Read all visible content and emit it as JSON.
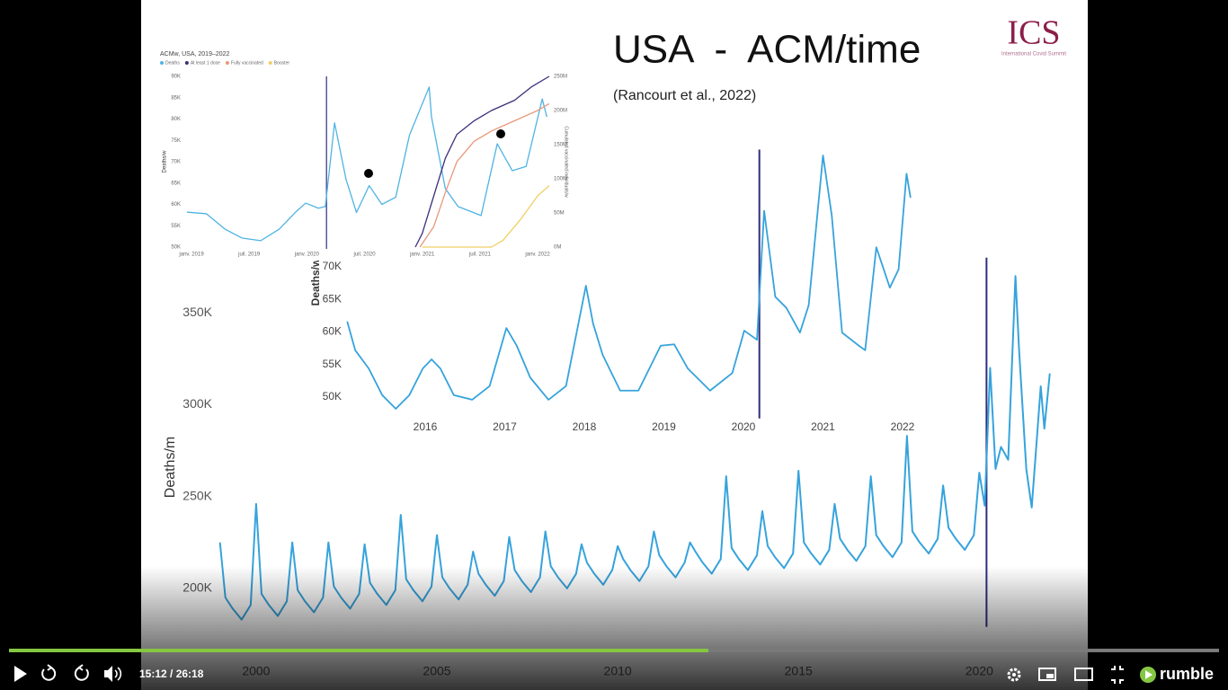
{
  "player": {
    "time": "15:12 / 26:18",
    "brand": "rumble"
  },
  "slide": {
    "title": "USA  -  ACM/time",
    "citation": "(Rancourt et al., 2022)",
    "logo": "ICS",
    "logo_subtitle": "International Covid Summit"
  },
  "chart_data": [
    {
      "type": "line",
      "y_label": "Deaths/m",
      "xlim": [
        1996.8,
        2023
      ],
      "ylim": [
        180000,
        380000
      ],
      "xticks": [
        2000,
        2005,
        2010,
        2015,
        2020
      ],
      "yticks": [
        {
          "value": 200000,
          "label": "200K"
        },
        {
          "value": 250000,
          "label": "250K"
        },
        {
          "value": 300000,
          "label": "300K"
        },
        {
          "value": 350000,
          "label": "350K"
        }
      ],
      "vline": 2020.2,
      "vline_color": "#2e2e7e",
      "series": [
        {
          "color": "#36a3dc",
          "x": [
            1999,
            1999.15,
            1999.35,
            1999.6,
            1999.85,
            2000,
            2000.15,
            2000.35,
            2000.6,
            2000.85,
            2001,
            2001.15,
            2001.35,
            2001.6,
            2001.85,
            2002,
            2002.15,
            2002.35,
            2002.6,
            2002.85,
            2003,
            2003.15,
            2003.35,
            2003.6,
            2003.85,
            2004,
            2004.15,
            2004.35,
            2004.6,
            2004.85,
            2005,
            2005.15,
            2005.35,
            2005.6,
            2005.85,
            2006,
            2006.15,
            2006.35,
            2006.6,
            2006.85,
            2007,
            2007.15,
            2007.35,
            2007.6,
            2007.85,
            2008,
            2008.15,
            2008.35,
            2008.6,
            2008.85,
            2009,
            2009.15,
            2009.35,
            2009.6,
            2009.85,
            2010,
            2010.15,
            2010.35,
            2010.6,
            2010.85,
            2011,
            2011.15,
            2011.35,
            2011.6,
            2011.85,
            2012,
            2012.15,
            2012.35,
            2012.6,
            2012.85,
            2013,
            2013.15,
            2013.35,
            2013.6,
            2013.85,
            2014,
            2014.15,
            2014.35,
            2014.6,
            2014.85,
            2015,
            2015.15,
            2015.35,
            2015.6,
            2015.85,
            2016,
            2016.15,
            2016.35,
            2016.6,
            2016.85,
            2017,
            2017.15,
            2017.35,
            2017.6,
            2017.85,
            2018,
            2018.15,
            2018.35,
            2018.6,
            2018.85,
            2019,
            2019.15,
            2019.35,
            2019.6,
            2019.85,
            2020,
            2020.15,
            2020.3,
            2020.45,
            2020.6,
            2020.8,
            2021,
            2021.1,
            2021.3,
            2021.45,
            2021.7,
            2021.8,
            2021.95
          ],
          "values": [
            225000,
            195000,
            189000,
            183000,
            191000,
            246000,
            197000,
            191000,
            185000,
            193000,
            225000,
            199000,
            193000,
            187000,
            195000,
            225000,
            201000,
            195000,
            189000,
            197000,
            224000,
            203000,
            197000,
            191000,
            199000,
            240000,
            205000,
            199000,
            193000,
            201000,
            229000,
            206000,
            200000,
            194000,
            202000,
            220000,
            208000,
            202000,
            196000,
            204000,
            228000,
            210000,
            204000,
            198000,
            206000,
            231000,
            212000,
            206000,
            200000,
            208000,
            224000,
            214000,
            208000,
            202000,
            210000,
            223000,
            216000,
            210000,
            204000,
            212000,
            231000,
            218000,
            212000,
            206000,
            214000,
            225000,
            220000,
            214000,
            208000,
            216000,
            261000,
            222000,
            216000,
            210000,
            218000,
            242000,
            223000,
            217000,
            211000,
            219000,
            264000,
            225000,
            219000,
            213000,
            221000,
            246000,
            227000,
            221000,
            215000,
            223000,
            261000,
            229000,
            223000,
            217000,
            225000,
            283000,
            231000,
            225000,
            219000,
            227000,
            256000,
            233000,
            227000,
            221000,
            229000,
            263000,
            245000,
            320000,
            265000,
            277000,
            270000,
            370000,
            330000,
            265000,
            244000,
            310000,
            287000,
            317000
          ]
        }
      ]
    },
    {
      "type": "line",
      "y_label": "Deaths/w",
      "xlim": [
        2015,
        2022.2
      ],
      "ylim": [
        47000,
        88000
      ],
      "xticks": [
        2016,
        2017,
        2018,
        2019,
        2020,
        2021,
        2022
      ],
      "yticks": [
        {
          "value": 50000,
          "label": "50K"
        },
        {
          "value": 55000,
          "label": "55K"
        },
        {
          "value": 60000,
          "label": "60K"
        },
        {
          "value": 65000,
          "label": "65K"
        },
        {
          "value": 70000,
          "label": "70K"
        }
      ],
      "vline": 2020.2,
      "vline_color": "#2e2e7e",
      "series": [
        {
          "color": "#36a3dc",
          "x": [
            2015.02,
            2015.12,
            2015.29,
            2015.46,
            2015.63,
            2015.8,
            2015.97,
            2016.08,
            2016.19,
            2016.36,
            2016.59,
            2016.81,
            2017.02,
            2017.15,
            2017.32,
            2017.55,
            2017.77,
            2018.02,
            2018.11,
            2018.23,
            2018.45,
            2018.68,
            2018.96,
            2019.13,
            2019.3,
            2019.58,
            2019.86,
            2020.01,
            2020.17,
            2020.26,
            2020.4,
            2020.54,
            2020.71,
            2020.82,
            2021,
            2021.11,
            2021.24,
            2021.45,
            2021.53,
            2021.67,
            2021.84,
            2021.95,
            2022.05,
            2022.1
          ],
          "values": [
            61600,
            57200,
            54400,
            50300,
            48200,
            50300,
            54400,
            55800,
            54400,
            50300,
            49600,
            51700,
            60600,
            57900,
            53000,
            49600,
            51700,
            67100,
            61300,
            56500,
            51000,
            51000,
            57900,
            58100,
            54400,
            51000,
            53700,
            60200,
            58800,
            78600,
            65400,
            63700,
            59900,
            64100,
            87100,
            77900,
            59900,
            57900,
            57200,
            73000,
            66800,
            69600,
            84300,
            80600
          ]
        }
      ]
    },
    {
      "type": "line",
      "title": "ACMw, USA, 2019–2022",
      "y_label": "Deaths/w",
      "y2_label": "Cumulated vaccinated individuals/w",
      "xlim": [
        2018.9,
        2022.15
      ],
      "ylim": [
        50000,
        90000
      ],
      "y2lim": [
        0,
        250000000
      ],
      "xticks": [
        {
          "value": 2019,
          "label": "janv. 2019"
        },
        {
          "value": 2019.5,
          "label": "juil. 2019"
        },
        {
          "value": 2020,
          "label": "janv. 2020"
        },
        {
          "value": 2020.5,
          "label": "juil. 2020"
        },
        {
          "value": 2021,
          "label": "janv. 2021"
        },
        {
          "value": 2021.5,
          "label": "juil. 2021"
        },
        {
          "value": 2022,
          "label": "janv. 2022"
        }
      ],
      "yticks": [
        {
          "value": 50000,
          "label": "50K"
        },
        {
          "value": 55000,
          "label": "55K"
        },
        {
          "value": 60000,
          "label": "60K"
        },
        {
          "value": 65000,
          "label": "65K"
        },
        {
          "value": 70000,
          "label": "70K"
        },
        {
          "value": 75000,
          "label": "75K"
        },
        {
          "value": 80000,
          "label": "80K"
        },
        {
          "value": 85000,
          "label": "85K"
        },
        {
          "value": 90000,
          "label": "90K"
        }
      ],
      "y2ticks": [
        {
          "value": 0,
          "label": "0M"
        },
        {
          "value": 50000000,
          "label": "50M"
        },
        {
          "value": 100000000,
          "label": "100M"
        },
        {
          "value": 150000000,
          "label": "150M"
        },
        {
          "value": 200000000,
          "label": "200M"
        },
        {
          "value": 250000000,
          "label": "250M"
        }
      ],
      "vline": 2020.17,
      "vline_color": "#2e2e7e",
      "series": [
        {
          "name": "Deaths",
          "color": "#4fb3e3",
          "x": [
            2018.96,
            2019.13,
            2019.29,
            2019.44,
            2019.6,
            2019.76,
            2019.91,
            2019.99,
            2020.1,
            2020.16,
            2020.24,
            2020.34,
            2020.43,
            2020.54,
            2020.65,
            2020.77,
            2020.89,
            2021.06,
            2021.08,
            2021.2,
            2021.31,
            2021.51,
            2021.65,
            2021.78,
            2021.9,
            2022.04,
            2022.08
          ],
          "values": [
            58200,
            57800,
            54200,
            52100,
            51500,
            54200,
            58400,
            60300,
            59100,
            59500,
            79100,
            65800,
            58100,
            64400,
            60000,
            61700,
            76300,
            87500,
            80500,
            63700,
            59500,
            57400,
            74200,
            67900,
            68900,
            84700,
            80500
          ]
        },
        {
          "name": "At least 1 dose",
          "color": "#3b2f7a",
          "axis": "y2",
          "x": [
            2020.94,
            2021,
            2021.1,
            2021.2,
            2021.3,
            2021.45,
            2021.6,
            2021.8,
            2021.95,
            2022.1
          ],
          "values": [
            0,
            20000000,
            75000000,
            130000000,
            165000000,
            185000000,
            200000000,
            215000000,
            235000000,
            250000000
          ]
        },
        {
          "name": "Fully vaccinated",
          "color": "#e8977a",
          "axis": "y2",
          "x": [
            2020.98,
            2021.1,
            2021.2,
            2021.3,
            2021.45,
            2021.6,
            2021.8,
            2022,
            2022.1
          ],
          "values": [
            0,
            30000000,
            80000000,
            125000000,
            155000000,
            170000000,
            185000000,
            200000000,
            210000000
          ]
        },
        {
          "name": "Booster",
          "color": "#f0cf63",
          "axis": "y2",
          "x": [
            2021,
            2021.6,
            2021.7,
            2021.85,
            2022,
            2022.1
          ],
          "values": [
            0,
            0,
            10000000,
            40000000,
            75000000,
            90000000
          ]
        }
      ]
    }
  ]
}
